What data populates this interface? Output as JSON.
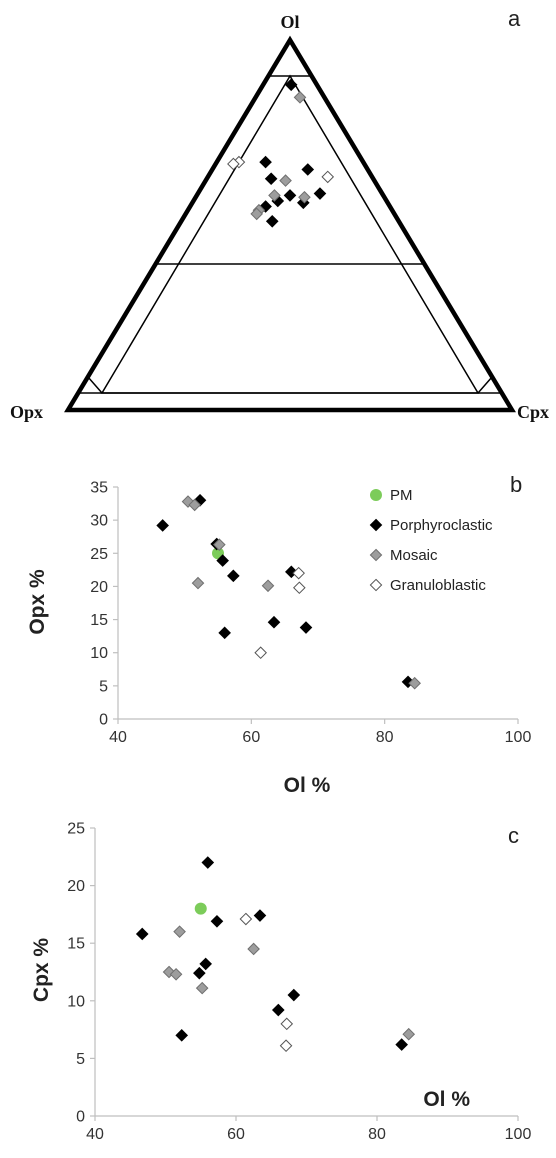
{
  "colors": {
    "PM": "#7ccc5a",
    "Porphyroclastic": "#000000",
    "Mosaic": "#9d9d9d",
    "Granuloblastic": "#ffffff",
    "axis": "#bfbfbf"
  },
  "chart_data": [
    {
      "panel": "a",
      "type": "scatter",
      "vertices": {
        "top": "Ol",
        "left": "Opx",
        "right": "Cpx"
      },
      "series": [
        {
          "name": "Porphyroclastic",
          "points": [
            {
              "ol": 83.5,
              "opx": 5.5,
              "cpx": 6
            },
            {
              "ol": 67,
              "opx": 22,
              "cpx": 11
            },
            {
              "ol": 65,
              "opx": 13.5,
              "cpx": 21.5
            },
            {
              "ol": 62.5,
              "opx": 23,
              "cpx": 14.5
            },
            {
              "ol": 58.5,
              "opx": 14,
              "cpx": 27.5
            },
            {
              "ol": 58,
              "opx": 21,
              "cpx": 21
            },
            {
              "ol": 56.5,
              "opx": 24.5,
              "cpx": 19
            },
            {
              "ol": 56,
              "opx": 19,
              "cpx": 25
            },
            {
              "ol": 55,
              "opx": 28,
              "cpx": 17
            },
            {
              "ol": 51,
              "opx": 28.5,
              "cpx": 20.5
            }
          ]
        },
        {
          "name": "Mosaic",
          "points": [
            {
              "ol": 84.5,
              "opx": 5.5,
              "cpx": 10
            },
            {
              "ol": 62,
              "opx": 20,
              "cpx": 18
            },
            {
              "ol": 58,
              "opx": 24.5,
              "cpx": 17.5
            },
            {
              "ol": 57.5,
              "opx": 18,
              "cpx": 24.5
            },
            {
              "ol": 54,
              "opx": 30,
              "cpx": 16
            },
            {
              "ol": 53,
              "opx": 31,
              "cpx": 16
            }
          ]
        },
        {
          "name": "Granuloblastic",
          "points": [
            {
              "ol": 67,
              "opx": 28,
              "cpx": 5
            },
            {
              "ol": 66.5,
              "opx": 29.5,
              "cpx": 4
            },
            {
              "ol": 63,
              "opx": 10,
              "cpx": 27
            }
          ]
        }
      ]
    },
    {
      "panel": "b",
      "type": "scatter",
      "xlabel": "Ol %",
      "ylabel": "Opx %",
      "xlim": [
        40,
        100
      ],
      "ylim": [
        0,
        35
      ],
      "xticks": [
        "40",
        "60",
        "80",
        "100"
      ],
      "yticks": [
        "0",
        "5",
        "10",
        "15",
        "20",
        "25",
        "30",
        "35"
      ],
      "legend_position": "top-right",
      "legend": [
        "PM",
        "Porphyroclastic",
        "Mosaic",
        "Granuloblastic"
      ],
      "series": [
        {
          "name": "PM",
          "points": [
            [
              55,
              25
            ]
          ]
        },
        {
          "name": "Porphyroclastic",
          "points": [
            [
              46.7,
              29.2
            ],
            [
              52.3,
              33
            ],
            [
              54.8,
              26.4
            ],
            [
              55.7,
              23.9
            ],
            [
              57.3,
              21.6
            ],
            [
              56,
              13
            ],
            [
              63.4,
              14.6
            ],
            [
              66,
              22.2
            ],
            [
              68.2,
              13.8
            ],
            [
              83.5,
              5.6
            ]
          ]
        },
        {
          "name": "Mosaic",
          "points": [
            [
              50.5,
              32.8
            ],
            [
              51.5,
              32.3
            ],
            [
              55.2,
              26.3
            ],
            [
              52,
              20.5
            ],
            [
              62.5,
              20.1
            ],
            [
              84.5,
              5.4
            ]
          ]
        },
        {
          "name": "Granuloblastic",
          "points": [
            [
              61.4,
              10
            ],
            [
              67.1,
              22
            ],
            [
              67.2,
              19.8
            ]
          ]
        }
      ]
    },
    {
      "panel": "c",
      "type": "scatter",
      "xlabel": "Ol %",
      "ylabel": "Cpx %",
      "xlim": [
        40,
        100
      ],
      "ylim": [
        0,
        25
      ],
      "xticks": [
        "40",
        "60",
        "80",
        "100"
      ],
      "yticks": [
        "0",
        "5",
        "10",
        "15",
        "20",
        "25"
      ],
      "series": [
        {
          "name": "PM",
          "points": [
            [
              55,
              18
            ]
          ]
        },
        {
          "name": "Porphyroclastic",
          "points": [
            [
              46.7,
              15.8
            ],
            [
              52.3,
              7
            ],
            [
              54.8,
              12.4
            ],
            [
              55.7,
              13.2
            ],
            [
              56,
              22
            ],
            [
              57.3,
              16.9
            ],
            [
              63.4,
              17.4
            ],
            [
              66,
              9.2
            ],
            [
              68.2,
              10.5
            ],
            [
              83.5,
              6.2
            ]
          ]
        },
        {
          "name": "Mosaic",
          "points": [
            [
              50.5,
              12.5
            ],
            [
              51.5,
              12.3
            ],
            [
              52,
              16
            ],
            [
              55.2,
              11.1
            ],
            [
              62.5,
              14.5
            ],
            [
              84.5,
              7.1
            ]
          ]
        },
        {
          "name": "Granuloblastic",
          "points": [
            [
              61.4,
              17.1
            ],
            [
              67.2,
              8
            ],
            [
              67.1,
              6.1
            ]
          ]
        }
      ]
    }
  ]
}
